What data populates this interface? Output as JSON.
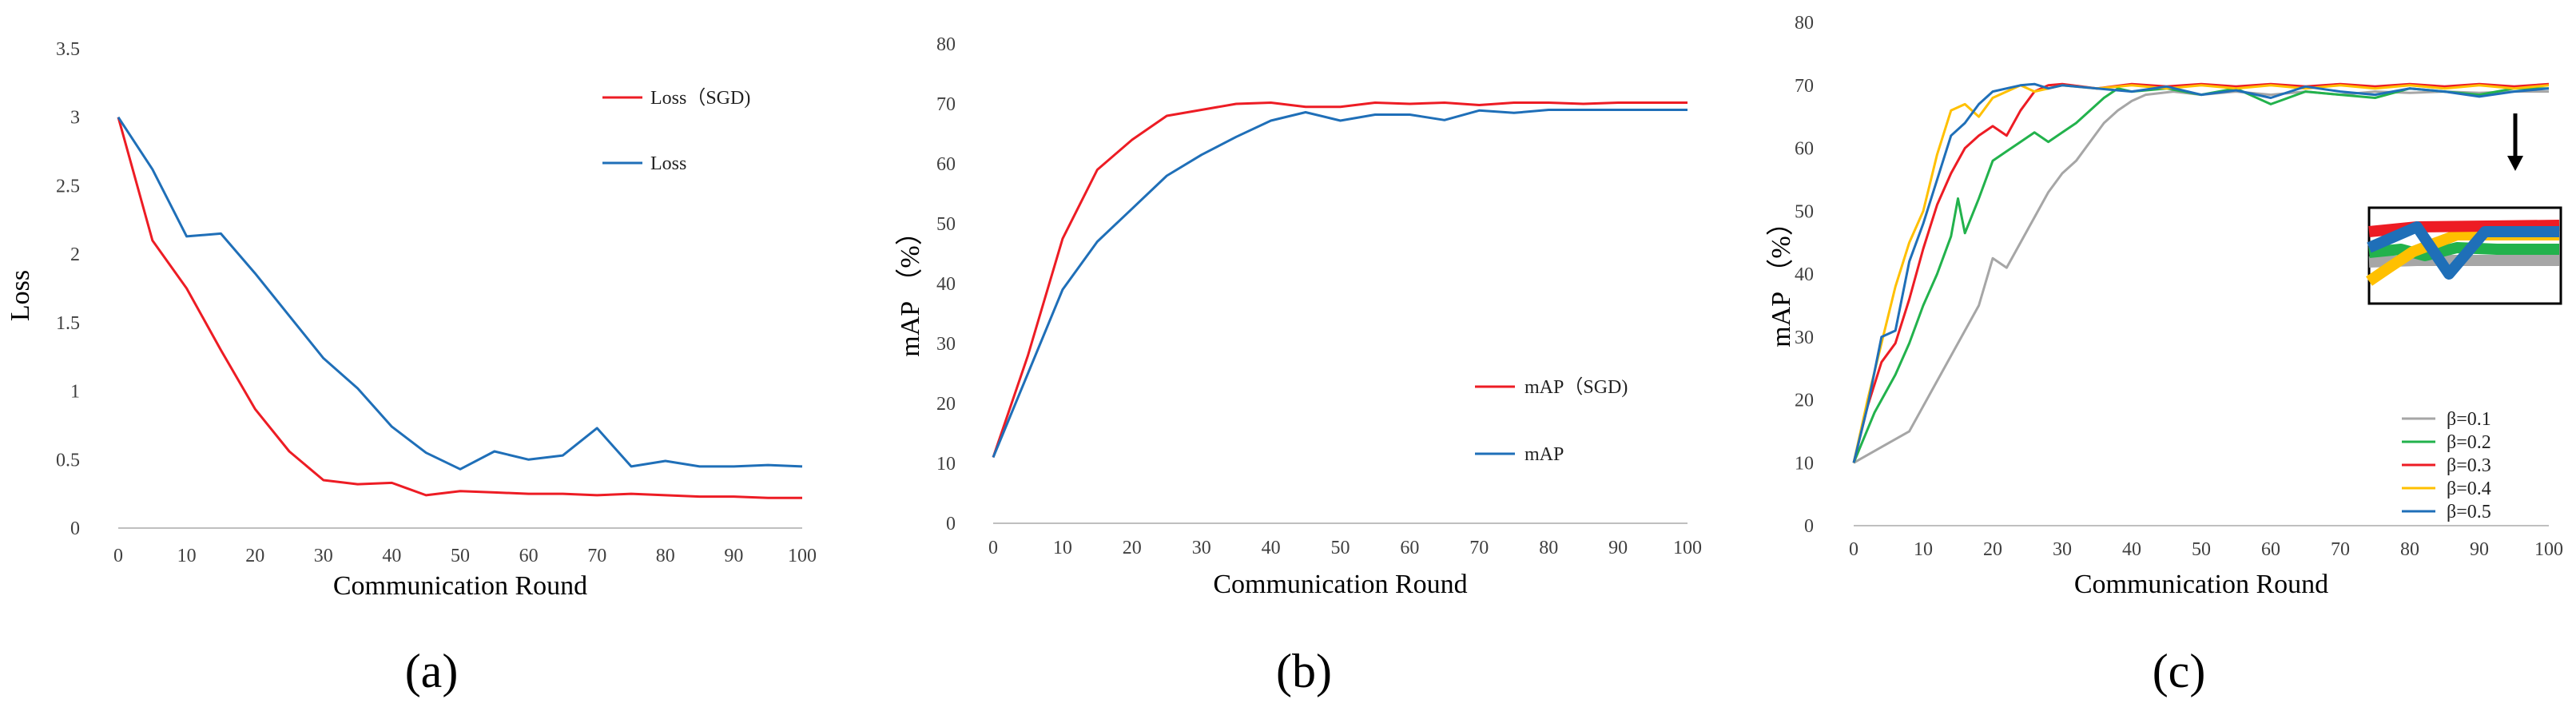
{
  "colors": {
    "red": "#ed1c24",
    "blue": "#1f6fb8",
    "gray": "#a6a6a6",
    "green": "#22b24c",
    "orange": "#ffc000",
    "axis": "#bfbfbf"
  },
  "chart_data": [
    {
      "type": "line",
      "panel_label": "(a)",
      "xlabel": "Communication Round",
      "ylabel": "Loss",
      "xlim": [
        0,
        100
      ],
      "ylim": [
        0,
        3.5
      ],
      "xticks": [
        "0",
        "10",
        "20",
        "30",
        "40",
        "50",
        "60",
        "70",
        "80",
        "90",
        "100"
      ],
      "yticks": [
        "0",
        "0.5",
        "1",
        "1.5",
        "2",
        "2.5",
        "3",
        "3.5"
      ],
      "x": [
        0,
        5,
        10,
        15,
        20,
        25,
        30,
        35,
        40,
        45,
        50,
        55,
        60,
        65,
        70,
        75,
        80,
        85,
        90,
        95,
        100
      ],
      "series": [
        {
          "name": "Loss（SGD)",
          "color": "red",
          "values": [
            3.0,
            2.1,
            1.75,
            1.3,
            0.87,
            0.56,
            0.35,
            0.32,
            0.33,
            0.24,
            0.27,
            0.26,
            0.25,
            0.25,
            0.24,
            0.25,
            0.24,
            0.23,
            0.23,
            0.22,
            0.22
          ]
        },
        {
          "name": "Loss",
          "color": "blue",
          "values": [
            3.0,
            2.62,
            2.13,
            2.15,
            1.86,
            1.55,
            1.24,
            1.02,
            0.74,
            0.55,
            0.43,
            0.56,
            0.5,
            0.53,
            0.73,
            0.45,
            0.49,
            0.45,
            0.45,
            0.46,
            0.45
          ]
        }
      ],
      "legend": "top-right"
    },
    {
      "type": "line",
      "panel_label": "(b)",
      "xlabel": "Communication Round",
      "ylabel": "mAP （%）",
      "xlim": [
        0,
        100
      ],
      "ylim": [
        0,
        80
      ],
      "xticks": [
        "0",
        "10",
        "20",
        "30",
        "40",
        "50",
        "60",
        "70",
        "80",
        "90",
        "100"
      ],
      "yticks": [
        "0",
        "10",
        "20",
        "30",
        "40",
        "50",
        "60",
        "70",
        "80"
      ],
      "x": [
        0,
        5,
        10,
        15,
        20,
        25,
        30,
        35,
        40,
        45,
        50,
        55,
        60,
        65,
        70,
        75,
        80,
        85,
        90,
        95,
        100
      ],
      "series": [
        {
          "name": "mAP（SGD)",
          "color": "red",
          "values": [
            11,
            28,
            47.5,
            59,
            64,
            68,
            69,
            70,
            70.2,
            69.5,
            69.5,
            70.2,
            70,
            70.2,
            69.8,
            70.2,
            70.2,
            70,
            70.2,
            70.2,
            70.2
          ]
        },
        {
          "name": "mAP",
          "color": "blue",
          "values": [
            11,
            25,
            39,
            47,
            52.5,
            58,
            61.5,
            64.5,
            67.2,
            68.6,
            67.2,
            68.2,
            68.2,
            67.3,
            68.9,
            68.5,
            69,
            69,
            69,
            69,
            69
          ]
        }
      ],
      "legend": "center-right"
    },
    {
      "type": "line",
      "panel_label": "(c)",
      "xlabel": "Communication Round",
      "ylabel": "mAP （%）",
      "xlim": [
        0,
        100
      ],
      "ylim": [
        0,
        80
      ],
      "xticks": [
        "0",
        "10",
        "20",
        "30",
        "40",
        "50",
        "60",
        "70",
        "80",
        "90",
        "100"
      ],
      "yticks": [
        "0",
        "10",
        "20",
        "30",
        "40",
        "50",
        "60",
        "70",
        "80"
      ],
      "series": [
        {
          "name": "β=0.1",
          "color": "gray",
          "x": [
            0,
            4,
            8,
            10,
            12,
            14,
            16,
            18,
            20,
            22,
            24,
            26,
            28,
            30,
            32,
            34,
            36,
            38,
            40,
            42,
            46,
            50,
            55,
            60,
            65,
            70,
            75,
            80,
            85,
            90,
            95,
            100
          ],
          "values": [
            10,
            12.5,
            15,
            19,
            23,
            27,
            31,
            35,
            42.5,
            41,
            45,
            49,
            53,
            56,
            58,
            61,
            64,
            66,
            67.5,
            68.5,
            69,
            68.5,
            69,
            68.5,
            69,
            68.5,
            69,
            68.8,
            69,
            68.8,
            69,
            69
          ]
        },
        {
          "name": "β=0.2",
          "color": "green",
          "x": [
            0,
            3,
            6,
            8,
            10,
            12,
            14,
            15,
            16,
            18,
            20,
            22,
            24,
            26,
            28,
            30,
            32,
            34,
            36,
            38,
            40,
            45,
            50,
            55,
            60,
            65,
            70,
            75,
            80,
            85,
            90,
            95,
            100
          ],
          "values": [
            10,
            18,
            24,
            29,
            35,
            40,
            46,
            52,
            46.5,
            52,
            58,
            59.5,
            61,
            62.5,
            61,
            62.5,
            64,
            66,
            68,
            69.5,
            69,
            69.5,
            68.5,
            69.5,
            67,
            69,
            68.5,
            68,
            69.5,
            69,
            68.5,
            69.5,
            69.5
          ]
        },
        {
          "name": "β=0.3",
          "color": "red",
          "x": [
            0,
            2,
            4,
            6,
            8,
            10,
            12,
            14,
            16,
            18,
            20,
            22,
            24,
            26,
            28,
            30,
            35,
            40,
            45,
            50,
            55,
            60,
            65,
            70,
            75,
            80,
            85,
            90,
            95,
            100
          ],
          "values": [
            10,
            19,
            26,
            29,
            36,
            44,
            51,
            56,
            60,
            62,
            63.5,
            62,
            66,
            69,
            70,
            70.2,
            69.5,
            70.2,
            69.8,
            70.2,
            69.8,
            70.2,
            69.8,
            70.2,
            69.8,
            70.2,
            69.8,
            70.2,
            69.8,
            70.2
          ]
        },
        {
          "name": "β=0.4",
          "color": "orange",
          "x": [
            0,
            2,
            4,
            6,
            8,
            10,
            12,
            14,
            16,
            18,
            19,
            20,
            22,
            24,
            26,
            30,
            35,
            40,
            45,
            50,
            55,
            60,
            65,
            70,
            75,
            80,
            85,
            90,
            95,
            100
          ],
          "values": [
            10,
            20,
            29,
            38,
            45,
            50,
            59,
            66,
            67,
            65,
            66.5,
            68,
            69,
            70,
            69,
            70,
            69.5,
            70,
            69.5,
            70,
            69.5,
            70,
            69.5,
            70,
            69.5,
            70,
            69.5,
            70,
            69.5,
            70
          ]
        },
        {
          "name": "β=0.5",
          "color": "blue",
          "x": [
            0,
            2,
            4,
            6,
            8,
            10,
            12,
            14,
            16,
            18,
            20,
            22,
            24,
            26,
            28,
            30,
            35,
            40,
            45,
            50,
            55,
            60,
            65,
            70,
            75,
            80,
            85,
            90,
            95,
            100
          ],
          "values": [
            10,
            19,
            30,
            31,
            42,
            48,
            55,
            62,
            64,
            67,
            69,
            69.5,
            70,
            70.2,
            69.5,
            70,
            69.5,
            69,
            69.8,
            68.5,
            69.2,
            68,
            69.8,
            69,
            68.5,
            69.5,
            69,
            68.2,
            69,
            69.5
          ]
        }
      ],
      "legend": "bottom-right"
    }
  ]
}
